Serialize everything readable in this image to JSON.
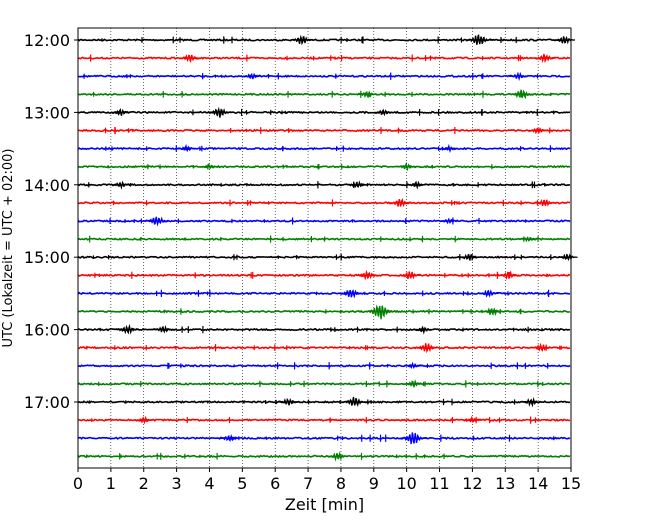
{
  "chart_data": {
    "type": "line",
    "subtype": "seismogram-helicorder",
    "xlabel": "Zeit  [min]",
    "ylabel": "UTC (Lokalzeit = UTC + 02:00)",
    "xlim": [
      0,
      15
    ],
    "x_ticks": [
      "0",
      "1",
      "2",
      "3",
      "4",
      "5",
      "6",
      "7",
      "8",
      "9",
      "10",
      "11",
      "12",
      "13",
      "14",
      "15"
    ],
    "y_tick_labels": [
      "12:00",
      "13:00",
      "14:00",
      "15:00",
      "16:00",
      "17:00"
    ],
    "trace_start": "12:00",
    "trace_end": "17:45",
    "minutes_per_trace": 15,
    "grid": "vertical dotted lines at each minute",
    "color_cycle": [
      "#000000",
      "#ff0000",
      "#0000ff",
      "#008000"
    ],
    "traces": [
      {
        "start": "12:00",
        "color": "#000000",
        "events": [
          {
            "t": 6.8,
            "amp": 0.55
          },
          {
            "t": 12.2,
            "amp": 0.7
          },
          {
            "t": 14.8,
            "amp": 0.5
          }
        ]
      },
      {
        "start": "12:15",
        "color": "#ff0000",
        "events": [
          {
            "t": 3.4,
            "amp": 0.45
          },
          {
            "t": 14.2,
            "amp": 0.5
          }
        ]
      },
      {
        "start": "12:30",
        "color": "#0000ff",
        "events": [
          {
            "t": 5.3,
            "amp": 0.35
          },
          {
            "t": 13.4,
            "amp": 0.35
          }
        ]
      },
      {
        "start": "12:45",
        "color": "#008000",
        "events": [
          {
            "t": 8.8,
            "amp": 0.4
          },
          {
            "t": 13.5,
            "amp": 0.6
          }
        ]
      },
      {
        "start": "13:00",
        "color": "#000000",
        "events": [
          {
            "t": 1.3,
            "amp": 0.4
          },
          {
            "t": 4.3,
            "amp": 0.6
          },
          {
            "t": 9.3,
            "amp": 0.35
          }
        ]
      },
      {
        "start": "13:15",
        "color": "#ff0000",
        "events": [
          {
            "t": 14.0,
            "amp": 0.4
          }
        ]
      },
      {
        "start": "13:30",
        "color": "#0000ff",
        "events": [
          {
            "t": 3.3,
            "amp": 0.35
          },
          {
            "t": 11.3,
            "amp": 0.3
          }
        ]
      },
      {
        "start": "13:45",
        "color": "#008000",
        "events": [
          {
            "t": 4.0,
            "amp": 0.3
          },
          {
            "t": 10.0,
            "amp": 0.35
          }
        ]
      },
      {
        "start": "14:00",
        "color": "#000000",
        "events": [
          {
            "t": 1.3,
            "amp": 0.35
          },
          {
            "t": 8.5,
            "amp": 0.4
          },
          {
            "t": 10.3,
            "amp": 0.35
          }
        ]
      },
      {
        "start": "14:15",
        "color": "#ff0000",
        "events": [
          {
            "t": 9.8,
            "amp": 0.5
          },
          {
            "t": 14.2,
            "amp": 0.45
          }
        ]
      },
      {
        "start": "14:30",
        "color": "#0000ff",
        "events": [
          {
            "t": 2.4,
            "amp": 0.6
          },
          {
            "t": 11.3,
            "amp": 0.3
          }
        ]
      },
      {
        "start": "14:45",
        "color": "#008000",
        "events": [
          {
            "t": 13.7,
            "amp": 0.3
          }
        ]
      },
      {
        "start": "15:00",
        "color": "#000000",
        "events": [
          {
            "t": 11.9,
            "amp": 0.4
          },
          {
            "t": 14.9,
            "amp": 0.4
          }
        ]
      },
      {
        "start": "15:15",
        "color": "#ff0000",
        "events": [
          {
            "t": 8.8,
            "amp": 0.5
          },
          {
            "t": 10.1,
            "amp": 0.5
          },
          {
            "t": 13.1,
            "amp": 0.45
          }
        ]
      },
      {
        "start": "15:30",
        "color": "#0000ff",
        "events": [
          {
            "t": 8.3,
            "amp": 0.55
          },
          {
            "t": 12.5,
            "amp": 0.4
          }
        ]
      },
      {
        "start": "15:45",
        "color": "#008000",
        "events": [
          {
            "t": 9.2,
            "amp": 0.9
          },
          {
            "t": 12.6,
            "amp": 0.45
          }
        ]
      },
      {
        "start": "16:00",
        "color": "#000000",
        "events": [
          {
            "t": 1.5,
            "amp": 0.5
          },
          {
            "t": 2.6,
            "amp": 0.4
          },
          {
            "t": 10.5,
            "amp": 0.35
          }
        ]
      },
      {
        "start": "16:15",
        "color": "#ff0000",
        "events": [
          {
            "t": 10.6,
            "amp": 0.55
          },
          {
            "t": 14.1,
            "amp": 0.45
          }
        ]
      },
      {
        "start": "16:30",
        "color": "#0000ff",
        "events": [
          {
            "t": 10.2,
            "amp": 0.3
          }
        ]
      },
      {
        "start": "16:45",
        "color": "#008000",
        "events": [
          {
            "t": 10.2,
            "amp": 0.4
          }
        ]
      },
      {
        "start": "17:00",
        "color": "#000000",
        "events": [
          {
            "t": 6.4,
            "amp": 0.4
          },
          {
            "t": 8.4,
            "amp": 0.6
          },
          {
            "t": 13.8,
            "amp": 0.4
          }
        ]
      },
      {
        "start": "17:15",
        "color": "#ff0000",
        "events": [
          {
            "t": 2.0,
            "amp": 0.35
          },
          {
            "t": 12.0,
            "amp": 0.3
          }
        ]
      },
      {
        "start": "17:30",
        "color": "#0000ff",
        "events": [
          {
            "t": 4.6,
            "amp": 0.4
          },
          {
            "t": 10.2,
            "amp": 0.75
          }
        ]
      },
      {
        "start": "17:45",
        "color": "#008000",
        "events": [
          {
            "t": 7.9,
            "amp": 0.45
          }
        ]
      }
    ]
  }
}
